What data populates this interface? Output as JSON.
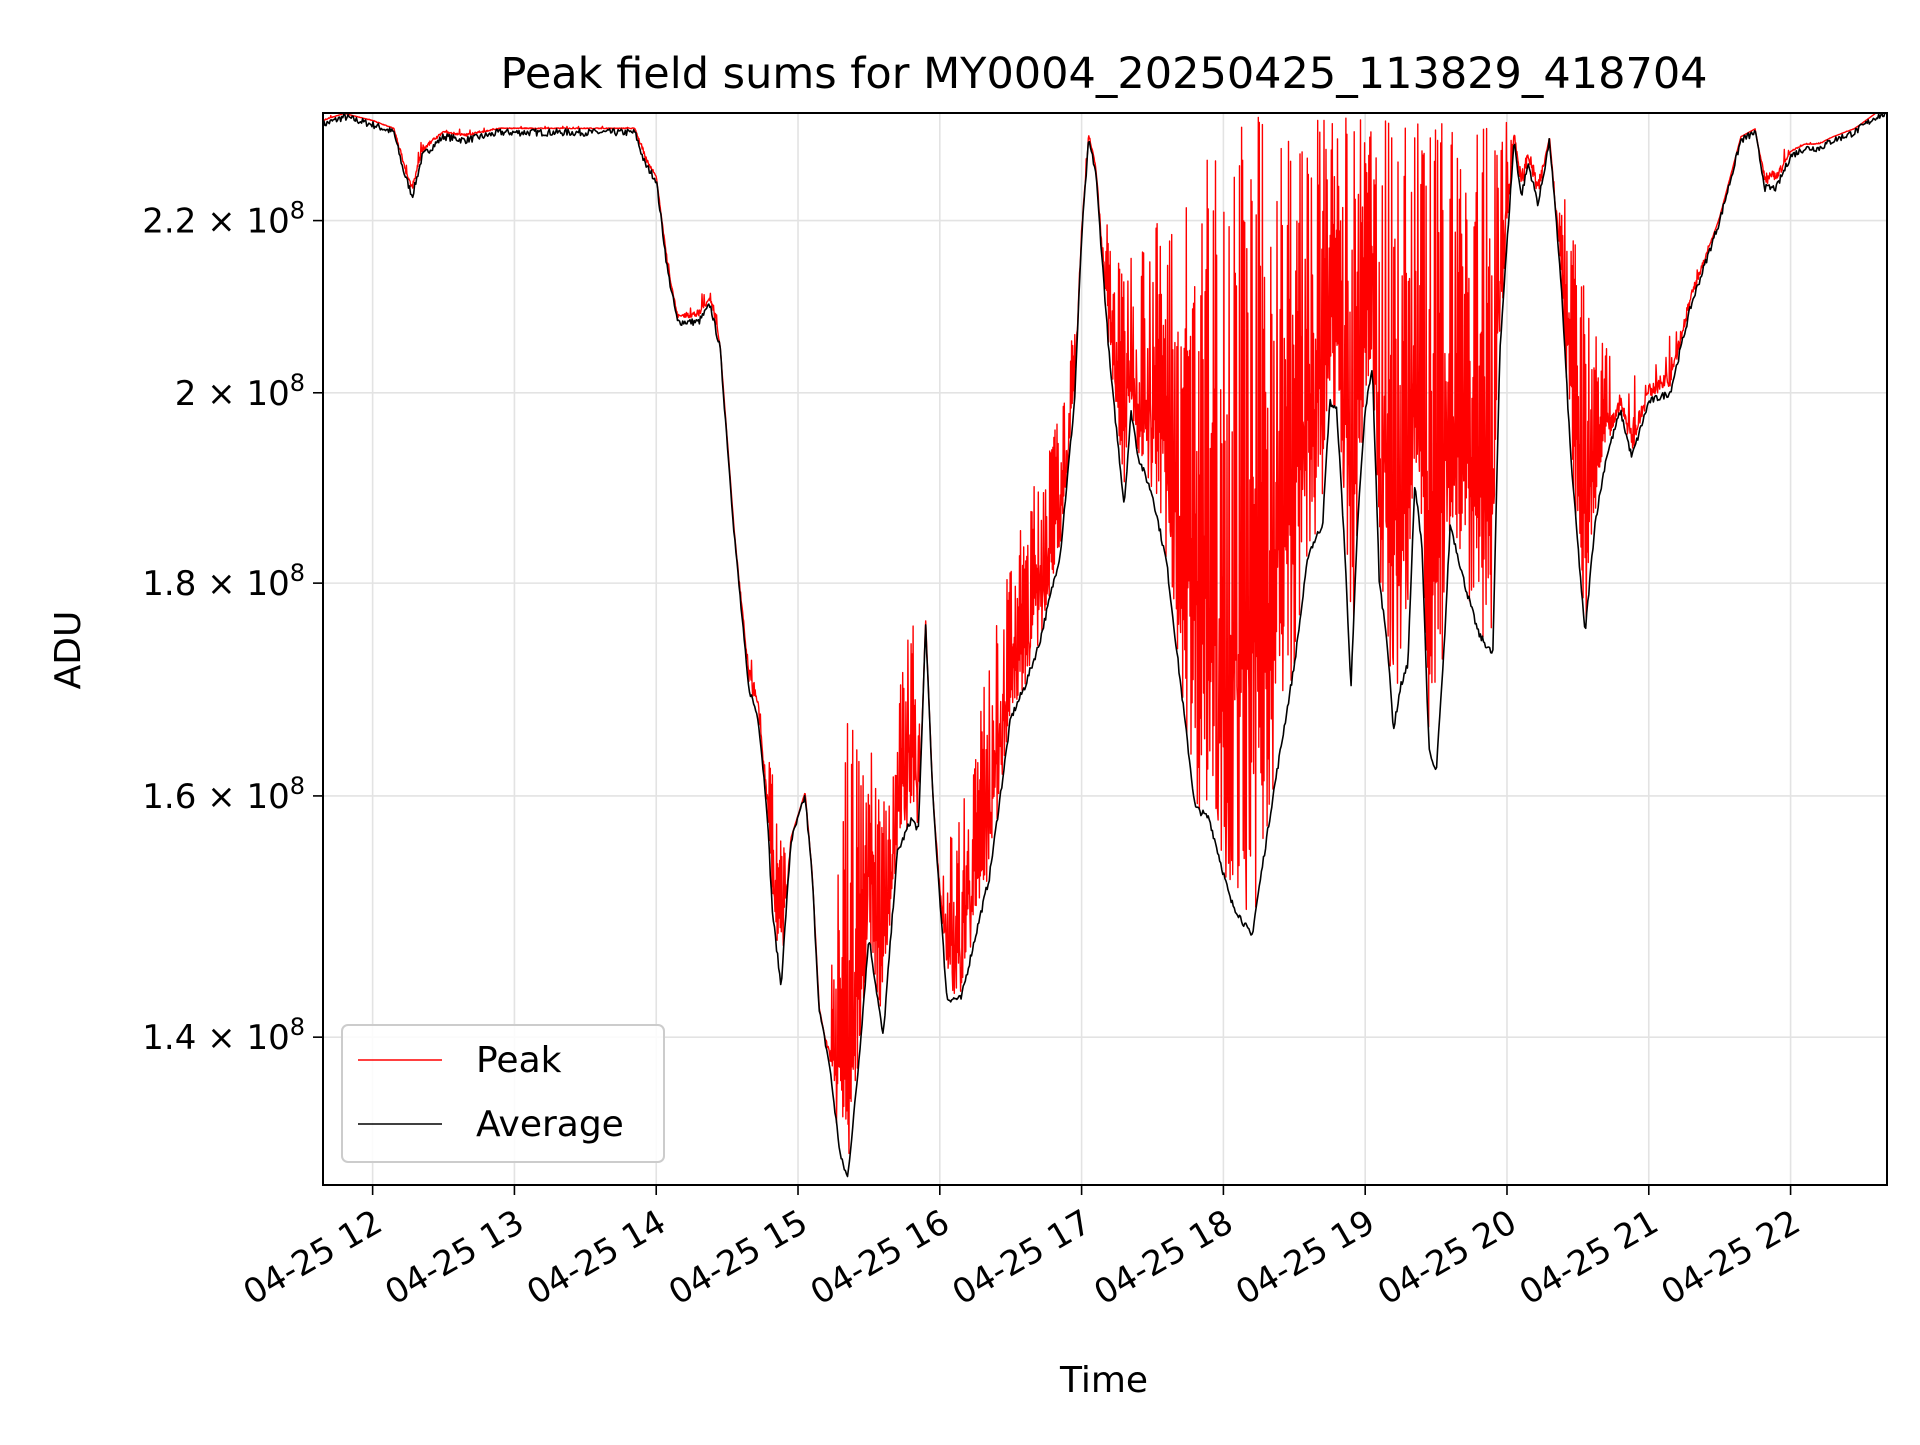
{
  "chart_data": {
    "type": "line",
    "title": "Peak field sums for MY0004_20250425_113829_418704",
    "xlabel": "Time",
    "ylabel": "ADU",
    "yscale": "log",
    "ylim": [
      129000000,
      233500000
    ],
    "xlim_hours": [
      11.65,
      22.68
    ],
    "grid": true,
    "legend_position": "lower-left",
    "x_ticks": [
      "04-25 12",
      "04-25 13",
      "04-25 14",
      "04-25 15",
      "04-25 16",
      "04-25 17",
      "04-25 18",
      "04-25 19",
      "04-25 20",
      "04-25 21",
      "04-25 22"
    ],
    "x_tick_hours": [
      12,
      13,
      14,
      15,
      16,
      17,
      18,
      19,
      20,
      21,
      22
    ],
    "y_ticks": [
      {
        "value": 140000000,
        "mantissa": "1.4"
      },
      {
        "value": 160000000,
        "mantissa": "1.6"
      },
      {
        "value": 180000000,
        "mantissa": "1.8"
      },
      {
        "value": 200000000,
        "mantissa": "2"
      },
      {
        "value": 220000000,
        "mantissa": "2.2"
      }
    ],
    "y_tick_suffix": "× 10",
    "y_tick_exponent": "8",
    "series": [
      {
        "name": "Peak",
        "color": "#ff0000",
        "note_envelope": "upper envelope of noisy peak values",
        "x": [
          11.65,
          12.0,
          12.2,
          12.25,
          12.35,
          12.6,
          13.0,
          13.9,
          14.0,
          14.15,
          14.3,
          14.42,
          14.5,
          14.7,
          14.8,
          14.95,
          15.05,
          15.15,
          15.25,
          15.35,
          15.5,
          15.65,
          15.8,
          15.9,
          16.0,
          16.1,
          16.3,
          16.5,
          16.7,
          16.9,
          17.05,
          17.25,
          17.5,
          17.7,
          18.0,
          18.5,
          19.0,
          19.5,
          19.9,
          20.0,
          20.2,
          20.4,
          20.6,
          20.8,
          21.0,
          21.2,
          21.6,
          21.85,
          22.0,
          22.3,
          22.68
        ],
        "y": [
          233000000,
          232500000,
          231000000,
          226000000,
          231000000,
          231500000,
          231500000,
          231500000,
          225000000,
          210000000,
          212000000,
          213000000,
          188000000,
          174000000,
          163000000,
          155000000,
          145000000,
          133000000,
          148000000,
          167000000,
          165000000,
          162000000,
          180000000,
          160000000,
          155000000,
          157000000,
          170000000,
          182000000,
          192000000,
          200000000,
          232000000,
          215000000,
          220000000,
          222000000,
          233000000,
          233000000,
          233000000,
          233000000,
          233000000,
          233000000,
          233000000,
          225000000,
          207000000,
          203000000,
          205000000,
          212000000,
          222000000,
          231000000,
          229000000,
          230000000,
          233000000
        ]
      },
      {
        "name": "Average",
        "color": "#000000",
        "x": [
          11.65,
          11.8,
          12.0,
          12.15,
          12.22,
          12.28,
          12.35,
          12.5,
          12.65,
          12.9,
          13.1,
          13.2,
          13.5,
          13.85,
          13.92,
          14.0,
          14.08,
          14.15,
          14.3,
          14.38,
          14.45,
          14.55,
          14.65,
          14.72,
          14.78,
          14.82,
          14.88,
          14.95,
          15.05,
          15.1,
          15.15,
          15.22,
          15.3,
          15.35,
          15.42,
          15.5,
          15.6,
          15.7,
          15.8,
          15.85,
          15.9,
          15.95,
          16.05,
          16.15,
          16.25,
          16.35,
          16.5,
          16.6,
          16.7,
          16.85,
          16.95,
          17.0,
          17.05,
          17.1,
          17.2,
          17.3,
          17.35,
          17.4,
          17.5,
          17.6,
          17.7,
          17.8,
          17.9,
          18.05,
          18.2,
          18.35,
          18.5,
          18.6,
          18.7,
          18.75,
          18.8,
          18.85,
          18.9,
          18.95,
          19.0,
          19.05,
          19.1,
          19.15,
          19.2,
          19.25,
          19.3,
          19.35,
          19.4,
          19.45,
          19.5,
          19.55,
          19.6,
          19.7,
          19.8,
          19.9,
          19.95,
          20.05,
          20.1,
          20.15,
          20.22,
          20.3,
          20.38,
          20.45,
          20.55,
          20.62,
          20.7,
          20.8,
          20.88,
          21.0,
          21.15,
          21.3,
          21.5,
          21.65,
          21.75,
          21.82,
          21.9,
          22.0,
          22.1,
          22.2,
          22.3,
          22.45,
          22.6,
          22.68
        ],
        "y": [
          232000000,
          233000000,
          232000000,
          231000000,
          226000000,
          223000000,
          228000000,
          230500000,
          230000000,
          231000000,
          231000000,
          231000000,
          231000000,
          231000000,
          227000000,
          225000000,
          214000000,
          208000000,
          208000000,
          210000000,
          205000000,
          185000000,
          170000000,
          167000000,
          159000000,
          150000000,
          144000000,
          156000000,
          160000000,
          153000000,
          142000000,
          138000000,
          131000000,
          129500000,
          137000000,
          148000000,
          140000000,
          155000000,
          158000000,
          157000000,
          176000000,
          160000000,
          143000000,
          143000000,
          148000000,
          153000000,
          167000000,
          170000000,
          174000000,
          183000000,
          199000000,
          218000000,
          230000000,
          226000000,
          203000000,
          188000000,
          198000000,
          193000000,
          189000000,
          182000000,
          170000000,
          159000000,
          158000000,
          151000000,
          148000000,
          160000000,
          172000000,
          183000000,
          186000000,
          199000000,
          198000000,
          185000000,
          170000000,
          187000000,
          198000000,
          203000000,
          180000000,
          175000000,
          166000000,
          170000000,
          172000000,
          190000000,
          184000000,
          164000000,
          162000000,
          172000000,
          186000000,
          180000000,
          175000000,
          173000000,
          205000000,
          230000000,
          223000000,
          227000000,
          222000000,
          230000000,
          213000000,
          193000000,
          175000000,
          186000000,
          193000000,
          198000000,
          193000000,
          199000000,
          200000000,
          210000000,
          220000000,
          230000000,
          231000000,
          224000000,
          224000000,
          228000000,
          229000000,
          229000000,
          230000000,
          231000000,
          233000000,
          233500000
        ]
      }
    ]
  }
}
